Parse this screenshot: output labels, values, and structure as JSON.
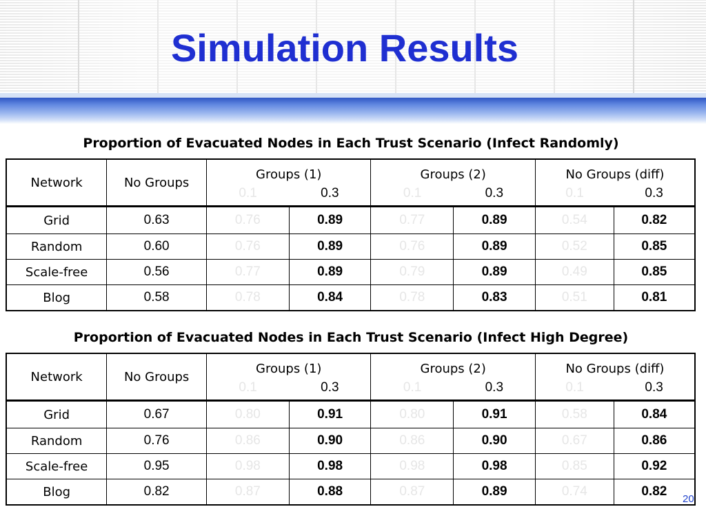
{
  "title": "Simulation Results",
  "page_number": "20",
  "colors": {
    "title": "#1f2fd1",
    "dim_value": "#e6e6e6",
    "band": "#2f56c4"
  },
  "table1": {
    "caption": "Proportion of Evacuated Nodes in Each Trust Scenario (Infect Randomly)",
    "headers": {
      "network": "Network",
      "no_groups": "No Groups",
      "groups1": "Groups (1)",
      "groups2": "Groups (2)",
      "nogroups_diff": "No Groups (diff)"
    },
    "sub": {
      "a": "0.1",
      "b": "0.3"
    },
    "rows": [
      {
        "network": "Grid",
        "no_groups": "0.63",
        "g1_01": "0.76",
        "g1_03": "0.89",
        "g2_01": "0.77",
        "g2_03": "0.89",
        "d_01": "0.54",
        "d_03": "0.82"
      },
      {
        "network": "Random",
        "no_groups": "0.60",
        "g1_01": "0.76",
        "g1_03": "0.89",
        "g2_01": "0.76",
        "g2_03": "0.89",
        "d_01": "0.52",
        "d_03": "0.85"
      },
      {
        "network": "Scale-free",
        "no_groups": "0.56",
        "g1_01": "0.77",
        "g1_03": "0.89",
        "g2_01": "0.79",
        "g2_03": "0.89",
        "d_01": "0.49",
        "d_03": "0.85"
      },
      {
        "network": "Blog",
        "no_groups": "0.58",
        "g1_01": "0.78",
        "g1_03": "0.84",
        "g2_01": "0.78",
        "g2_03": "0.83",
        "d_01": "0.51",
        "d_03": "0.81"
      }
    ]
  },
  "table2": {
    "caption": "Proportion of Evacuated Nodes in Each Trust Scenario (Infect High Degree)",
    "headers": {
      "network": "Network",
      "no_groups": "No Groups",
      "groups1": "Groups (1)",
      "groups2": "Groups (2)",
      "nogroups_diff": "No Groups (diff)"
    },
    "sub": {
      "a": "0.1",
      "b": "0.3"
    },
    "rows": [
      {
        "network": "Grid",
        "no_groups": "0.67",
        "g1_01": "0.80",
        "g1_03": "0.91",
        "g2_01": "0.80",
        "g2_03": "0.91",
        "d_01": "0.58",
        "d_03": "0.84"
      },
      {
        "network": "Random",
        "no_groups": "0.76",
        "g1_01": "0.86",
        "g1_03": "0.90",
        "g2_01": "0.86",
        "g2_03": "0.90",
        "d_01": "0.67",
        "d_03": "0.86"
      },
      {
        "network": "Scale-free",
        "no_groups": "0.95",
        "g1_01": "0.98",
        "g1_03": "0.98",
        "g2_01": "0.98",
        "g2_03": "0.98",
        "d_01": "0.85",
        "d_03": "0.92"
      },
      {
        "network": "Blog",
        "no_groups": "0.82",
        "g1_01": "0.87",
        "g1_03": "0.88",
        "g2_01": "0.87",
        "g2_03": "0.89",
        "d_01": "0.74",
        "d_03": "0.82"
      }
    ]
  }
}
